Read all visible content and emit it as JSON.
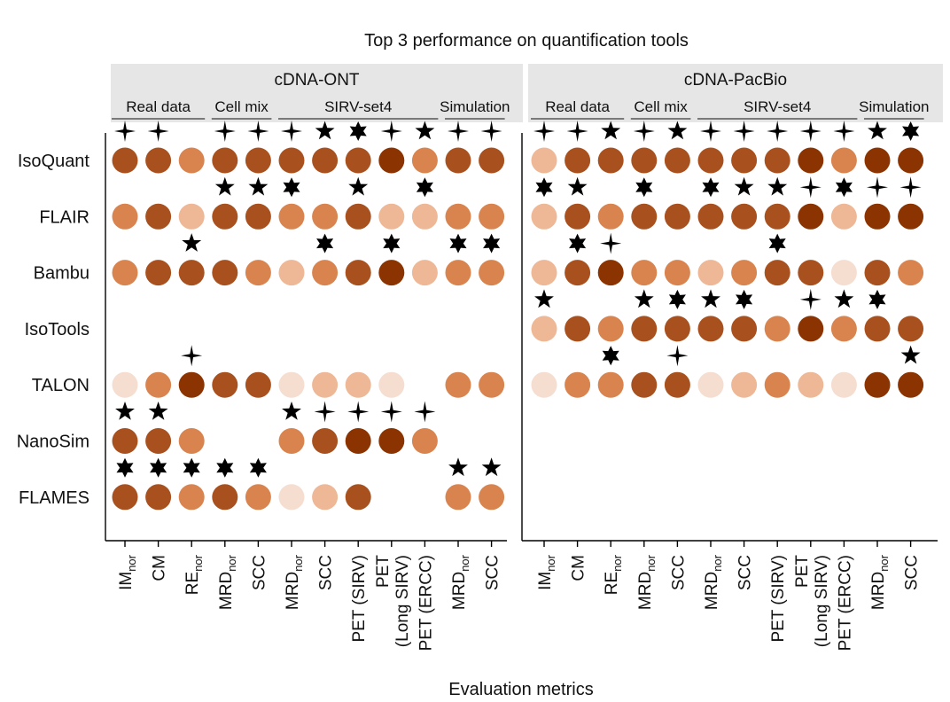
{
  "chart_data": {
    "type": "dot-matrix",
    "title": "Top 3 performance on quantification tools",
    "xlabel": "Evaluation metrics",
    "ylabel": "",
    "value_range": [
      1,
      5
    ],
    "value_meaning": "colour intensity level (1 = lightest, 5 = darkest)",
    "rank_marker_legend": {
      "1": "six-pointed star",
      "2": "five-pointed star",
      "3": "four-pointed star"
    },
    "tools": [
      "IsoQuant",
      "FLAIR",
      "Bambu",
      "IsoTools",
      "TALON",
      "NanoSim",
      "FLAMES"
    ],
    "panels": [
      {
        "name": "cDNA-ONT",
        "groups": [
          {
            "name": "Real data",
            "columns": [
              0,
              2
            ]
          },
          {
            "name": "Cell mix",
            "columns": [
              3,
              4
            ]
          },
          {
            "name": "SIRV-set4",
            "columns": [
              5,
              9
            ]
          },
          {
            "name": "Simulation",
            "columns": [
              10,
              11
            ]
          }
        ],
        "metrics": [
          {
            "main": "IM",
            "sub": "nor"
          },
          {
            "main": "CM",
            "sub": ""
          },
          {
            "main": "RE",
            "sub": "nor"
          },
          {
            "main": "MRD",
            "sub": "nor"
          },
          {
            "main": "SCC",
            "sub": ""
          },
          {
            "main": "MRD",
            "sub": "nor"
          },
          {
            "main": "SCC",
            "sub": ""
          },
          {
            "main": "PET (SIRV)",
            "sub": ""
          },
          {
            "main": "PET",
            "line2": "(Long SIRV)",
            "sub": ""
          },
          {
            "main": "PET (ERCC)",
            "sub": ""
          },
          {
            "main": "MRD",
            "sub": "nor"
          },
          {
            "main": "SCC",
            "sub": ""
          }
        ],
        "values": [
          [
            4,
            4,
            3,
            4,
            4,
            4,
            4,
            4,
            5,
            3,
            4,
            4
          ],
          [
            3,
            4,
            2,
            4,
            4,
            3,
            3,
            4,
            2,
            2,
            3,
            3
          ],
          [
            3,
            4,
            4,
            4,
            3,
            2,
            3,
            4,
            5,
            2,
            3,
            3
          ],
          [
            null,
            null,
            null,
            null,
            null,
            null,
            null,
            null,
            null,
            null,
            null,
            null
          ],
          [
            1,
            3,
            5,
            4,
            4,
            1,
            2,
            2,
            1,
            null,
            3,
            3
          ],
          [
            4,
            4,
            3,
            null,
            null,
            3,
            4,
            5,
            5,
            3,
            null,
            null
          ],
          [
            4,
            4,
            3,
            4,
            3,
            1,
            2,
            4,
            null,
            null,
            3,
            3
          ]
        ],
        "ranks": [
          [
            3,
            3,
            null,
            3,
            3,
            3,
            2,
            1,
            3,
            2,
            3,
            3
          ],
          [
            null,
            null,
            null,
            2,
            2,
            1,
            null,
            2,
            null,
            1,
            null,
            null
          ],
          [
            null,
            null,
            2,
            null,
            null,
            null,
            1,
            null,
            1,
            null,
            1,
            1
          ],
          [
            null,
            null,
            null,
            null,
            null,
            null,
            null,
            null,
            null,
            null,
            null,
            null
          ],
          [
            null,
            null,
            3,
            null,
            null,
            null,
            null,
            null,
            null,
            null,
            null,
            null
          ],
          [
            2,
            2,
            null,
            null,
            null,
            2,
            3,
            3,
            3,
            3,
            null,
            null
          ],
          [
            1,
            1,
            1,
            1,
            1,
            null,
            null,
            null,
            null,
            null,
            2,
            2
          ]
        ]
      },
      {
        "name": "cDNA-PacBio",
        "groups": [
          {
            "name": "Real data",
            "columns": [
              0,
              2
            ]
          },
          {
            "name": "Cell mix",
            "columns": [
              3,
              4
            ]
          },
          {
            "name": "SIRV-set4",
            "columns": [
              5,
              9
            ]
          },
          {
            "name": "Simulation",
            "columns": [
              10,
              11
            ]
          }
        ],
        "metrics": [
          {
            "main": "IM",
            "sub": "nor"
          },
          {
            "main": "CM",
            "sub": ""
          },
          {
            "main": "RE",
            "sub": "nor"
          },
          {
            "main": "MRD",
            "sub": "nor"
          },
          {
            "main": "SCC",
            "sub": ""
          },
          {
            "main": "MRD",
            "sub": "nor"
          },
          {
            "main": "SCC",
            "sub": ""
          },
          {
            "main": "PET (SIRV)",
            "sub": ""
          },
          {
            "main": "PET",
            "line2": "(Long SIRV)",
            "sub": ""
          },
          {
            "main": "PET (ERCC)",
            "sub": ""
          },
          {
            "main": "MRD",
            "sub": "nor"
          },
          {
            "main": "SCC",
            "sub": ""
          }
        ],
        "values": [
          [
            2,
            4,
            4,
            4,
            4,
            4,
            4,
            4,
            5,
            3,
            5,
            5
          ],
          [
            2,
            4,
            3,
            4,
            4,
            4,
            4,
            4,
            5,
            2,
            5,
            5
          ],
          [
            2,
            4,
            5,
            3,
            3,
            2,
            3,
            4,
            4,
            1,
            4,
            3
          ],
          [
            2,
            4,
            3,
            4,
            4,
            4,
            4,
            3,
            5,
            3,
            4,
            4
          ],
          [
            1,
            3,
            3,
            4,
            4,
            1,
            2,
            3,
            2,
            1,
            5,
            5
          ],
          [
            null,
            null,
            null,
            null,
            null,
            null,
            null,
            null,
            null,
            null,
            null,
            null
          ],
          [
            null,
            null,
            null,
            null,
            null,
            null,
            null,
            null,
            null,
            null,
            null,
            null
          ]
        ],
        "ranks": [
          [
            3,
            3,
            2,
            3,
            2,
            3,
            3,
            3,
            3,
            3,
            2,
            1
          ],
          [
            1,
            2,
            null,
            1,
            null,
            1,
            2,
            2,
            3,
            1,
            3,
            3
          ],
          [
            null,
            1,
            3,
            null,
            null,
            null,
            null,
            1,
            null,
            null,
            null,
            null
          ],
          [
            2,
            null,
            null,
            2,
            1,
            2,
            1,
            null,
            3,
            2,
            1,
            null
          ],
          [
            null,
            null,
            1,
            null,
            3,
            null,
            null,
            null,
            null,
            null,
            null,
            2
          ],
          [
            null,
            null,
            null,
            null,
            null,
            null,
            null,
            null,
            null,
            null,
            null,
            null
          ],
          [
            null,
            null,
            null,
            null,
            null,
            null,
            null,
            null,
            null,
            null,
            null,
            null
          ]
        ]
      }
    ]
  },
  "colors": {
    "level_1": "#f5ddd0",
    "level_2": "#eeb795",
    "level_3": "#d9844f",
    "level_4": "#a8511f",
    "level_5": "#8b3401",
    "marker": "#000000",
    "panel_header": "#e6e6e6",
    "axis": "#000000",
    "group_line": "#555555"
  }
}
